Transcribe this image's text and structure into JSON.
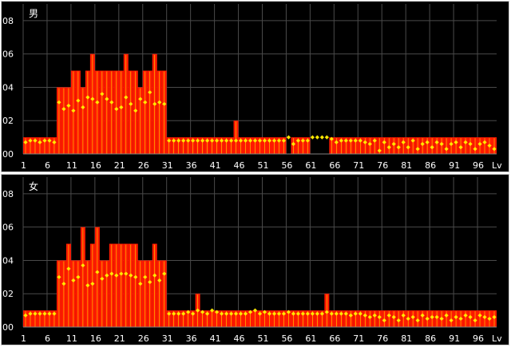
{
  "chart_data": [
    {
      "type": "bar",
      "title": "男",
      "x_start": 1,
      "x_end": 99,
      "x_tick_labels": [
        "1",
        "6",
        "11",
        "16",
        "21",
        "26",
        "31",
        "36",
        "41",
        "46",
        "51",
        "56",
        "61",
        "66",
        "71",
        "76",
        "81",
        "86",
        "91",
        "96",
        "Lv"
      ],
      "y_tick_labels": [
        "00",
        "02",
        "04",
        "06",
        "08"
      ],
      "ylim": [
        0,
        0.09
      ],
      "grid": true,
      "colors": {
        "background": "#000000",
        "bar": "#ff1a00",
        "bar_line": "#ffd800",
        "marker": "#ffe800",
        "grid": "#4a4a4a"
      },
      "series": [
        {
          "values": [
            0.01,
            0.01,
            0.01,
            0.01,
            0.01,
            0.01,
            0.01,
            0.04,
            0.04,
            0.04,
            0.05,
            0.05,
            0.04,
            0.05,
            0.06,
            0.05,
            0.05,
            0.05,
            0.05,
            0.05,
            0.05,
            0.06,
            0.05,
            0.05,
            0.04,
            0.05,
            0.05,
            0.06,
            0.05,
            0.05,
            0.01,
            0.01,
            0.01,
            0.01,
            0.01,
            0.01,
            0.01,
            0.01,
            0.01,
            0.01,
            0.01,
            0.01,
            0.01,
            0.01,
            0.02,
            0.01,
            0.01,
            0.01,
            0.01,
            0.01,
            0.01,
            0.01,
            0.01,
            0.01,
            0.01,
            0.0,
            0.01,
            0.01,
            0.01,
            0.01,
            0.0,
            0.0,
            0.0,
            0.0,
            0.01,
            0.01,
            0.01,
            0.01,
            0.01,
            0.01,
            0.01,
            0.01,
            0.01,
            0.01,
            0.01,
            0.01,
            0.01,
            0.01,
            0.01,
            0.01,
            0.01,
            0.01,
            0.01,
            0.01,
            0.01,
            0.01,
            0.01,
            0.01,
            0.01,
            0.01,
            0.01,
            0.01,
            0.01,
            0.01,
            0.01,
            0.01,
            0.01,
            0.01,
            0.01
          ]
        },
        {
          "type": "points",
          "values": [
            0.007,
            0.008,
            0.008,
            0.007,
            0.008,
            0.008,
            0.007,
            0.031,
            0.027,
            0.029,
            0.026,
            0.032,
            0.028,
            0.034,
            0.033,
            0.031,
            0.036,
            0.033,
            0.031,
            0.027,
            0.028,
            0.034,
            0.03,
            0.026,
            0.033,
            0.031,
            0.037,
            0.03,
            0.031,
            0.03,
            0.008,
            0.008,
            0.008,
            0.008,
            0.008,
            0.008,
            0.008,
            0.008,
            0.008,
            0.008,
            0.008,
            0.008,
            0.008,
            0.008,
            0.008,
            0.008,
            0.008,
            0.008,
            0.008,
            0.008,
            0.008,
            0.008,
            0.008,
            0.008,
            0.008,
            0.01,
            0.006,
            0.008,
            0.008,
            0.008,
            0.01,
            0.01,
            0.01,
            0.01,
            0.009,
            0.007,
            0.008,
            0.008,
            0.008,
            0.008,
            0.008,
            0.007,
            0.006,
            0.008,
            0.002,
            0.007,
            0.004,
            0.006,
            0.004,
            0.007,
            0.004,
            0.008,
            0.003,
            0.006,
            0.007,
            0.004,
            0.007,
            0.006,
            0.003,
            0.006,
            0.007,
            0.004,
            0.007,
            0.006,
            0.003,
            0.006,
            0.007,
            0.005,
            0.003
          ]
        }
      ]
    },
    {
      "type": "bar",
      "title": "女",
      "x_start": 1,
      "x_end": 99,
      "x_tick_labels": [
        "1",
        "6",
        "11",
        "16",
        "21",
        "26",
        "31",
        "36",
        "41",
        "46",
        "51",
        "56",
        "61",
        "66",
        "71",
        "76",
        "81",
        "86",
        "91",
        "96",
        "Lv"
      ],
      "y_tick_labels": [
        "00",
        "02",
        "04",
        "06",
        "08"
      ],
      "ylim": [
        0,
        0.09
      ],
      "grid": true,
      "colors": {
        "background": "#000000",
        "bar": "#ff1a00",
        "bar_line": "#ffd800",
        "marker": "#ffe800",
        "grid": "#4a4a4a"
      },
      "series": [
        {
          "values": [
            0.01,
            0.01,
            0.01,
            0.01,
            0.01,
            0.01,
            0.01,
            0.04,
            0.04,
            0.05,
            0.04,
            0.04,
            0.06,
            0.04,
            0.05,
            0.06,
            0.04,
            0.04,
            0.05,
            0.05,
            0.05,
            0.05,
            0.05,
            0.05,
            0.04,
            0.04,
            0.04,
            0.05,
            0.04,
            0.04,
            0.01,
            0.01,
            0.01,
            0.01,
            0.01,
            0.01,
            0.02,
            0.01,
            0.01,
            0.01,
            0.01,
            0.01,
            0.01,
            0.01,
            0.01,
            0.01,
            0.01,
            0.01,
            0.01,
            0.01,
            0.01,
            0.01,
            0.01,
            0.01,
            0.01,
            0.01,
            0.01,
            0.01,
            0.01,
            0.01,
            0.01,
            0.01,
            0.01,
            0.02,
            0.01,
            0.01,
            0.01,
            0.01,
            0.01,
            0.01,
            0.01,
            0.01,
            0.01,
            0.01,
            0.01,
            0.01,
            0.01,
            0.01,
            0.01,
            0.01,
            0.01,
            0.01,
            0.01,
            0.01,
            0.01,
            0.01,
            0.01,
            0.01,
            0.01,
            0.01,
            0.01,
            0.01,
            0.01,
            0.01,
            0.01,
            0.01,
            0.01,
            0.01,
            0.01
          ]
        },
        {
          "type": "points",
          "values": [
            0.007,
            0.008,
            0.008,
            0.008,
            0.008,
            0.008,
            0.008,
            0.03,
            0.026,
            0.035,
            0.028,
            0.03,
            0.037,
            0.025,
            0.026,
            0.033,
            0.029,
            0.031,
            0.032,
            0.031,
            0.032,
            0.032,
            0.031,
            0.03,
            0.026,
            0.03,
            0.027,
            0.031,
            0.028,
            0.032,
            0.008,
            0.008,
            0.008,
            0.008,
            0.009,
            0.008,
            0.01,
            0.009,
            0.008,
            0.01,
            0.009,
            0.008,
            0.008,
            0.008,
            0.008,
            0.008,
            0.008,
            0.009,
            0.01,
            0.008,
            0.009,
            0.008,
            0.008,
            0.008,
            0.008,
            0.009,
            0.008,
            0.008,
            0.008,
            0.008,
            0.008,
            0.008,
            0.008,
            0.009,
            0.008,
            0.008,
            0.008,
            0.008,
            0.007,
            0.008,
            0.008,
            0.007,
            0.006,
            0.007,
            0.006,
            0.004,
            0.007,
            0.006,
            0.004,
            0.007,
            0.005,
            0.006,
            0.004,
            0.007,
            0.005,
            0.006,
            0.006,
            0.005,
            0.007,
            0.004,
            0.006,
            0.005,
            0.007,
            0.006,
            0.004,
            0.007,
            0.006,
            0.005,
            0.006
          ]
        }
      ]
    }
  ]
}
